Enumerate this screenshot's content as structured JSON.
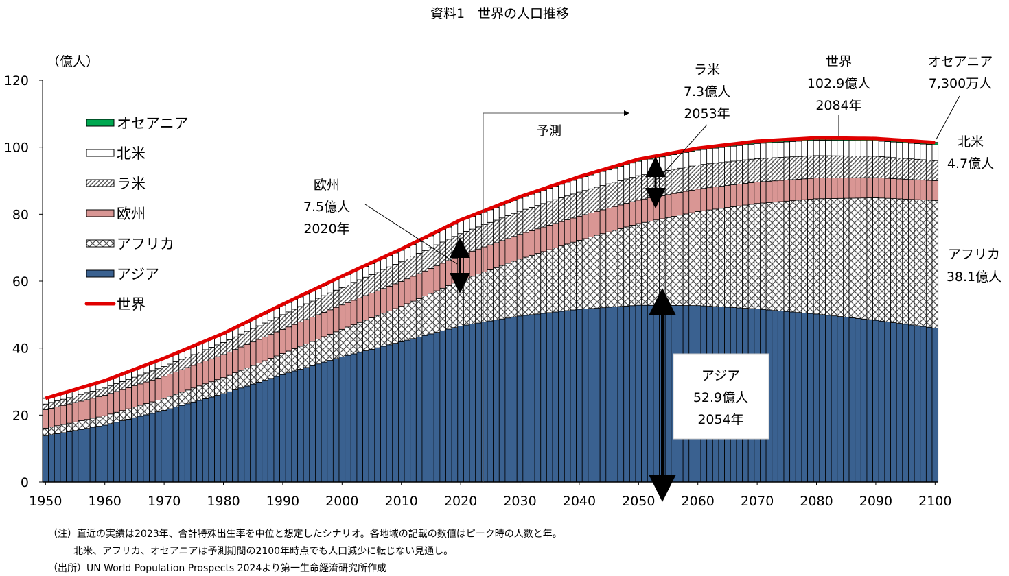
{
  "chart_data": {
    "type": "bar",
    "stacked": true,
    "title": "資料1　世界の人口推移",
    "ylabel": "（億人）",
    "ylim": [
      0,
      120
    ],
    "yticks": [
      0,
      20,
      40,
      60,
      80,
      100,
      120
    ],
    "xlim": [
      1950,
      2100
    ],
    "xticks": [
      1950,
      1960,
      1970,
      1980,
      1990,
      2000,
      2010,
      2020,
      2030,
      2040,
      2050,
      2060,
      2070,
      2080,
      2090,
      2100
    ],
    "grid": false,
    "legend_position": "top-left",
    "x": [
      1950,
      1960,
      1970,
      1980,
      1990,
      2000,
      2010,
      2020,
      2030,
      2040,
      2050,
      2060,
      2070,
      2080,
      2090,
      2100
    ],
    "series": [
      {
        "name": "アジア",
        "color": "#3A6190",
        "pattern": "solid",
        "values": [
          13.8,
          17.0,
          21.4,
          26.4,
          32.1,
          37.4,
          41.9,
          46.6,
          49.6,
          51.6,
          52.8,
          52.7,
          51.7,
          50.2,
          48.3,
          46.0
        ]
      },
      {
        "name": "アフリカ",
        "color": "#FFFFFF",
        "pattern": "crosshatch",
        "values": [
          2.3,
          2.8,
          3.6,
          4.8,
          6.3,
          8.2,
          10.6,
          13.6,
          17.0,
          20.6,
          24.4,
          28.1,
          31.5,
          34.4,
          36.6,
          38.1
        ]
      },
      {
        "name": "欧州",
        "color": "#D99694",
        "pattern": "solid",
        "values": [
          5.5,
          6.1,
          6.6,
          6.9,
          7.2,
          7.3,
          7.4,
          7.5,
          7.4,
          7.2,
          7.0,
          6.7,
          6.4,
          6.2,
          6.0,
          5.9
        ]
      },
      {
        "name": "ラ米",
        "color": "#FFFFFF",
        "pattern": "diagonal",
        "values": [
          1.7,
          2.2,
          2.9,
          3.6,
          4.4,
          5.2,
          5.9,
          6.5,
          6.9,
          7.2,
          7.3,
          7.2,
          7.0,
          6.7,
          6.4,
          6.0
        ]
      },
      {
        "name": "北米",
        "color": "#FFFFFF",
        "pattern": "solid",
        "values": [
          1.7,
          2.0,
          2.3,
          2.5,
          2.8,
          3.1,
          3.4,
          3.7,
          3.9,
          4.1,
          4.3,
          4.4,
          4.5,
          4.6,
          4.6,
          4.7
        ]
      },
      {
        "name": "オセアニア",
        "color": "#00A850",
        "pattern": "solid",
        "values": [
          0.13,
          0.16,
          0.2,
          0.23,
          0.27,
          0.31,
          0.37,
          0.43,
          0.48,
          0.53,
          0.58,
          0.62,
          0.65,
          0.68,
          0.71,
          0.73
        ]
      },
      {
        "name": "世界",
        "type": "line",
        "color": "#E00000",
        "values": [
          25.0,
          30.3,
          37.0,
          44.4,
          53.1,
          61.5,
          69.6,
          78.3,
          85.2,
          91.2,
          96.4,
          99.7,
          101.8,
          102.8,
          102.6,
          101.4
        ]
      }
    ],
    "forecast_label": "予測",
    "annotations": {
      "latam": [
        "ラ米",
        "7.3億人",
        "2053年"
      ],
      "world": [
        "世界",
        "102.9億人",
        "2084年"
      ],
      "oceania": [
        "オセアニア",
        "7,300万人"
      ],
      "namerica": [
        "北米",
        "4.7億人"
      ],
      "africa": [
        "アフリカ",
        "38.1億人"
      ],
      "europe": [
        "欧州",
        "7.5億人",
        "2020年"
      ],
      "asia": [
        "アジア",
        "52.9億人",
        "2054年"
      ]
    }
  },
  "notes": {
    "line1": "（注）直近の実績は2023年、合計特殊出生率を中位と想定したシナリオ。各地域の記載の数値はピーク時の人数と年。",
    "line2": "北米、アフリカ、オセアニアは予測期間の2100年時点でも人口減少に転じない見通し。",
    "line3": "（出所）UN World Population Prospects 2024より第一生命経済研究所作成"
  }
}
